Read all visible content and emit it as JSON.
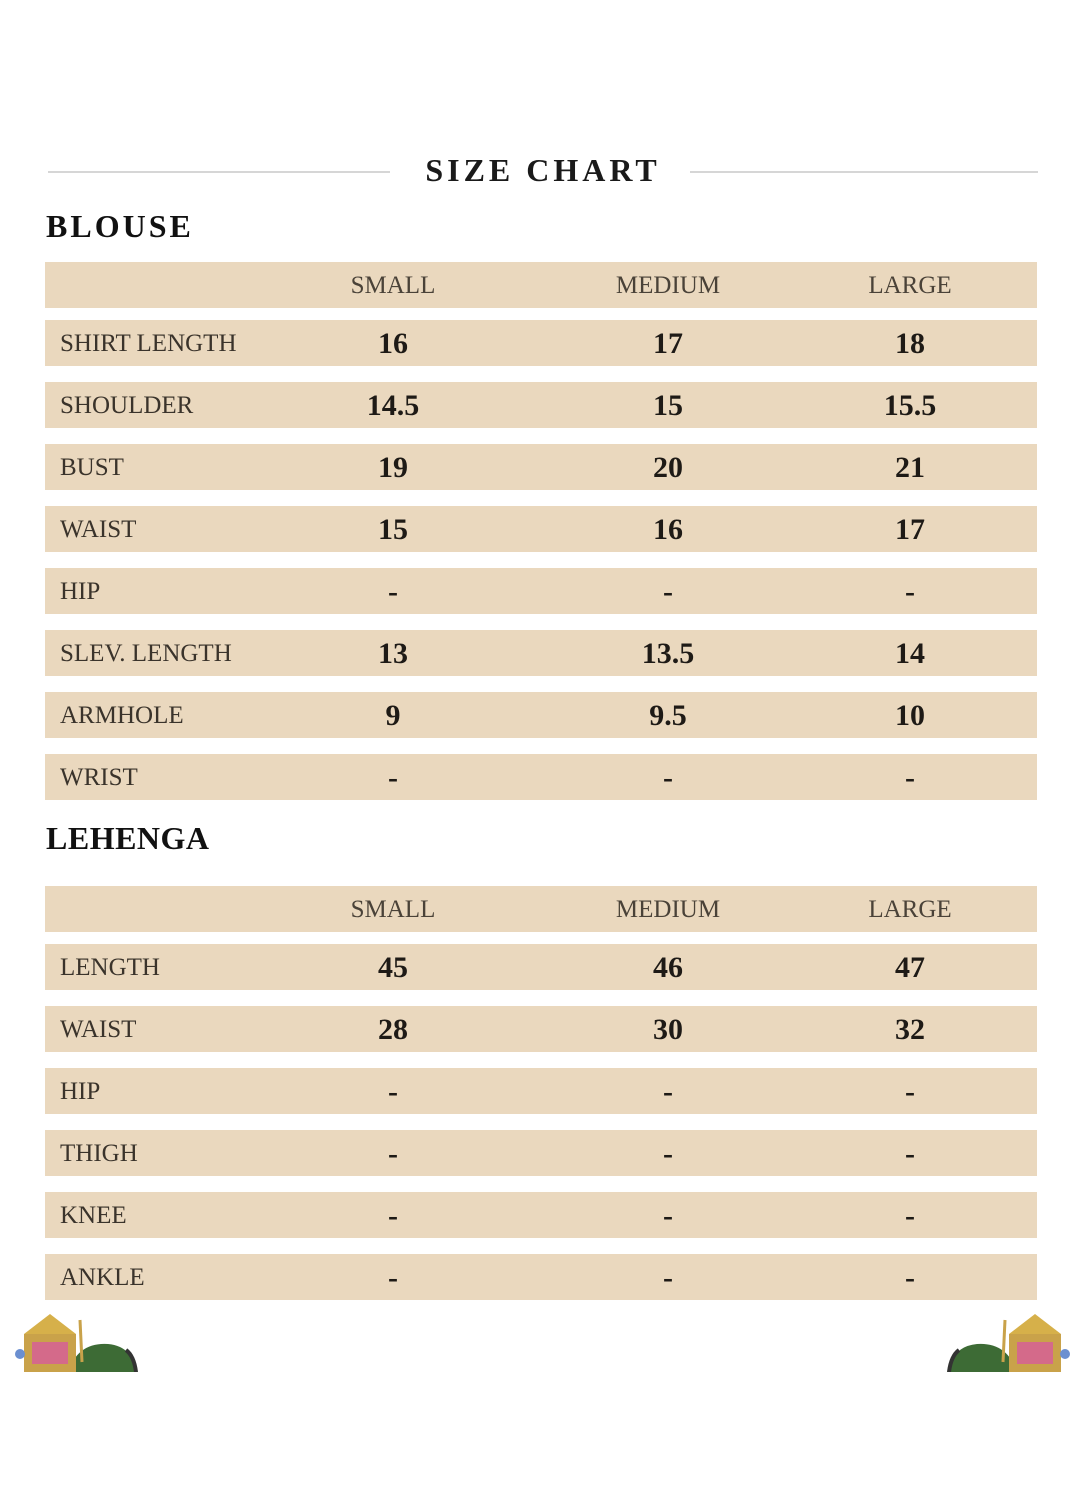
{
  "title": "SIZE CHART",
  "columns": [
    "SMALL",
    "MEDIUM",
    "LARGE"
  ],
  "blouse": {
    "heading": "BLOUSE",
    "rows": [
      {
        "label": "SHIRT LENGTH",
        "values": [
          "16",
          "17",
          "18"
        ]
      },
      {
        "label": "SHOULDER",
        "values": [
          "14.5",
          "15",
          "15.5"
        ]
      },
      {
        "label": "BUST",
        "values": [
          "19",
          "20",
          "21"
        ]
      },
      {
        "label": "WAIST",
        "values": [
          "15",
          "16",
          "17"
        ]
      },
      {
        "label": "HIP",
        "values": [
          "-",
          "-",
          "-"
        ]
      },
      {
        "label": "SLEV. LENGTH",
        "values": [
          "13",
          "13.5",
          "14"
        ]
      },
      {
        "label": "ARMHOLE",
        "values": [
          "9",
          "9.5",
          "10"
        ]
      },
      {
        "label": "WRIST",
        "values": [
          "-",
          "-",
          "-"
        ]
      }
    ]
  },
  "lehenga": {
    "heading": "LEHENGA",
    "rows": [
      {
        "label": "LENGTH",
        "values": [
          "45",
          "46",
          "47"
        ]
      },
      {
        "label": "WAIST",
        "values": [
          "28",
          "30",
          "32"
        ]
      },
      {
        "label": "HIP",
        "values": [
          "-",
          "-",
          "-"
        ]
      },
      {
        "label": "THIGH",
        "values": [
          "-",
          "-",
          "-"
        ]
      },
      {
        "label": "KNEE",
        "values": [
          "-",
          "-",
          "-"
        ]
      },
      {
        "label": "ANKLE",
        "values": [
          "-",
          "-",
          "-"
        ]
      }
    ]
  },
  "colors": {
    "row_bg": "#ead8be",
    "divider": "#d6d6d6"
  },
  "decorations": [
    "elephant-howdah-left",
    "elephant-howdah-right"
  ]
}
